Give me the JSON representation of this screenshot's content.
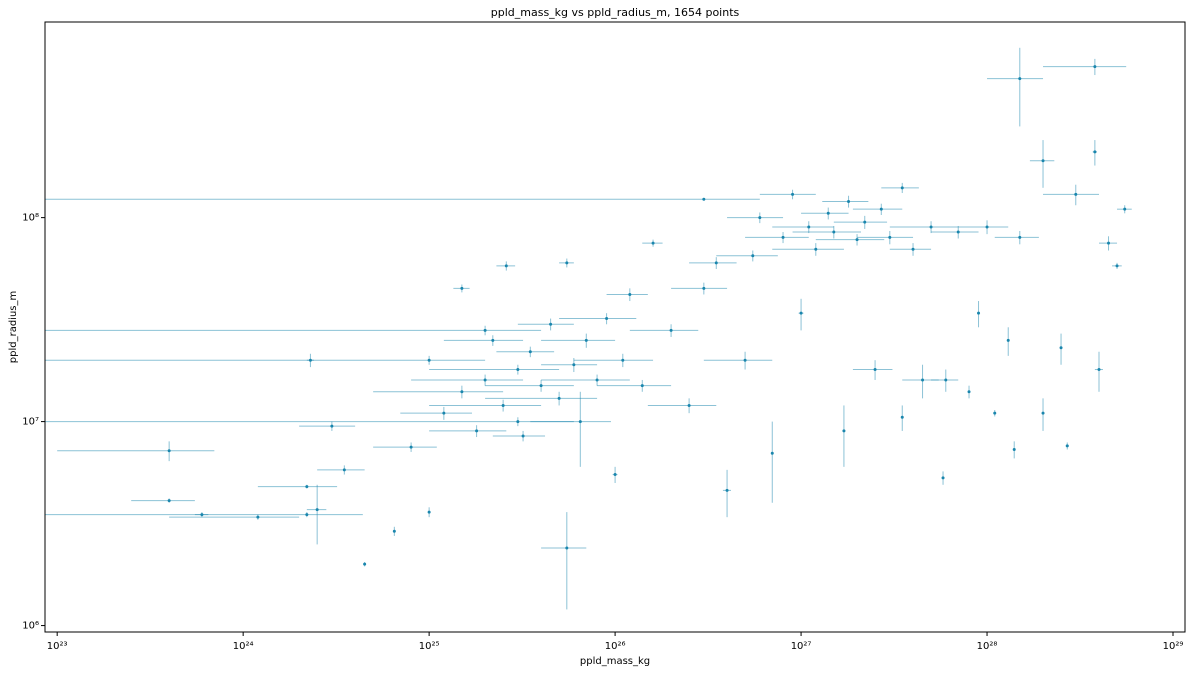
{
  "chart_data": {
    "type": "scatter",
    "title": "ppld_mass_kg vs ppld_radius_m, 1654 points",
    "xlabel": "ppld_mass_kg",
    "ylabel": "ppld_radius_m",
    "xscale": "log",
    "yscale": "log",
    "color": "#1a86ad",
    "xlim": [
      8.6e+22,
      1.16e+29
    ],
    "ylim": [
      930000.0,
      910000000.0
    ],
    "xticks": [
      {
        "value": 1e+23,
        "label": "10²³"
      },
      {
        "value": 1e+24,
        "label": "10²⁴"
      },
      {
        "value": 1e+25,
        "label": "10²⁵"
      },
      {
        "value": 1e+26,
        "label": "10²⁶"
      },
      {
        "value": 1e+27,
        "label": "10²⁷"
      },
      {
        "value": 1e+28,
        "label": "10²⁸"
      },
      {
        "value": 1e+29,
        "label": "10²⁹"
      }
    ],
    "yticks": [
      {
        "value": 1000000.0,
        "label": "10⁶"
      },
      {
        "value": 10000000.0,
        "label": "10⁷"
      },
      {
        "value": 100000000.0,
        "label": "10⁸"
      }
    ],
    "x": [
      4e+23,
      4e+23,
      6e+23,
      1.2e+24,
      2.2e+24,
      2.3e+24,
      2.5e+24,
      3e+24,
      3.5e+24,
      4.5e+24,
      6.5e+24,
      8e+24,
      1e+25,
      1.2e+25,
      1.5e+25,
      1.5e+25,
      1.8e+25,
      2e+25,
      2.2e+25,
      2.5e+25,
      2.6e+25,
      3e+25,
      3.2e+25,
      3.5e+25,
      4e+25,
      4.5e+25,
      5e+25,
      5.5e+25,
      5.5e+25,
      6e+25,
      6.5e+25,
      7e+25,
      8e+25,
      9e+25,
      1e+26,
      1.1e+26,
      1.2e+26,
      1.4e+26,
      1.6e+26,
      2e+26,
      2.5e+26,
      3e+26,
      3.5e+26,
      4e+26,
      5e+26,
      5.5e+26,
      6e+26,
      7e+26,
      8e+26,
      9e+26,
      1e+27,
      1.1e+27,
      1.2e+27,
      1.4e+27,
      1.5e+27,
      1.7e+27,
      1.8e+27,
      2e+27,
      2.2e+27,
      2.5e+27,
      2.7e+27,
      3e+27,
      3.5e+27,
      3.5e+27,
      4e+27,
      4.5e+27,
      5e+27,
      5.8e+27,
      6e+27,
      7e+27,
      8e+27,
      9e+27,
      1e+28,
      1.1e+28,
      1.3e+28,
      1.4e+28,
      1.5e+28,
      1.5e+28,
      2e+28,
      2e+28,
      2.5e+28,
      2.7e+28,
      3e+28,
      3.8e+28,
      3.8e+28,
      4e+28,
      4.5e+28,
      5e+28,
      5.5e+28,
      3e+26,
      2e+25,
      3e+25,
      1e+25,
      2.2e+24
    ],
    "values": [
      7200000.0,
      4100000.0,
      3500000.0,
      3400000.0,
      4800000.0,
      20000000.0,
      3700000.0,
      9500000.0,
      5800000.0,
      2000000.0,
      2900000.0,
      7500000.0,
      3600000.0,
      11000000.0,
      45000000.0,
      14000000.0,
      9000000.0,
      16000000.0,
      25000000.0,
      12000000.0,
      58000000.0,
      18000000.0,
      8500000.0,
      22000000.0,
      15000000.0,
      30000000.0,
      13000000.0,
      2400000.0,
      60000000.0,
      19000000.0,
      10000000.0,
      25000000.0,
      16000000.0,
      32000000.0,
      5500000.0,
      20000000.0,
      42000000.0,
      15000000.0,
      75000000.0,
      28000000.0,
      12000000.0,
      45000000.0,
      60000000.0,
      4600000.0,
      20000000.0,
      65000000.0,
      100000000.0,
      7000000.0,
      80000000.0,
      130000000.0,
      34000000.0,
      90000000.0,
      70000000.0,
      105000000.0,
      85000000.0,
      9000000.0,
      120000000.0,
      78000000.0,
      95000000.0,
      18000000.0,
      110000000.0,
      80000000.0,
      10500000.0,
      140000000.0,
      70000000.0,
      16000000.0,
      90000000.0,
      5300000.0,
      16000000.0,
      85000000.0,
      14000000.0,
      34000000.0,
      90000000.0,
      11000000.0,
      25000000.0,
      7300000.0,
      480000000.0,
      80000000.0,
      11000000.0,
      190000000.0,
      23000000.0,
      7600000.0,
      130000000.0,
      550000000.0,
      210000000.0,
      18000000.0,
      75000000.0,
      58000000.0,
      110000000.0,
      123000000.0,
      28000000.0,
      10000000.0,
      20000000.0,
      3500000.0
    ],
    "xerr": [
      3e+23,
      1.5e+23,
      5e+22,
      8e+23,
      1e+24,
      1e+23,
      3e+23,
      1e+24,
      1e+24,
      2e+22,
      1e+23,
      3e+24,
      1e+23,
      5e+24,
      1.5e+24,
      1e+25,
      8e+24,
      1.2e+25,
      1e+25,
      1.5e+25,
      3e+24,
      2e+25,
      1e+25,
      1.2e+25,
      2e+25,
      1.5e+25,
      3e+25,
      1.5e+25,
      5e+24,
      2e+25,
      3e+25,
      3e+25,
      4e+25,
      4e+25,
      3e+24,
      5e+25,
      3e+25,
      6e+25,
      2e+25,
      8e+25,
      1e+26,
      1e+26,
      1e+26,
      2e+25,
      2e+26,
      2e+26,
      2e+26,
      1e+25,
      3e+26,
      3e+26,
      3e+25,
      4e+26,
      5e+26,
      4e+26,
      6e+26,
      3e+25,
      5e+26,
      8e+26,
      7e+26,
      6e+26,
      8e+26,
      1e+27,
      5e+25,
      8e+26,
      1e+27,
      1e+27,
      2e+27,
      1e+26,
      1e+27,
      2e+27,
      1e+26,
      1e+26,
      3e+27,
      1e+26,
      1e+26,
      1e+26,
      5e+27,
      4e+27,
      1e+26,
      3e+27,
      1e+26,
      5e+26,
      1e+28,
      1.8e+28,
      1e+27,
      2e+27,
      5e+27,
      3e+27,
      5e+27,
      3e+26,
      2e+25,
      3e+25,
      1e+25,
      2.2e+24
    ],
    "yerr": [
      800000.0,
      100000.0,
      100000.0,
      100000.0,
      100000.0,
      1500000.0,
      1200000.0,
      500000.0,
      300000.0,
      50000.0,
      150000.0,
      400000.0,
      200000.0,
      800000.0,
      2000000.0,
      1000000.0,
      600000.0,
      1000000.0,
      1500000.0,
      800000.0,
      3000000.0,
      1000000.0,
      500000.0,
      1300000.0,
      1000000.0,
      2000000.0,
      1000000.0,
      1200000.0,
      3000000.0,
      1500000.0,
      4000000.0,
      2000000.0,
      1000000.0,
      2000000.0,
      500000.0,
      1500000.0,
      3000000.0,
      1000000.0,
      3000000.0,
      2000000.0,
      1000000.0,
      3000000.0,
      4000000.0,
      1200000.0,
      2000000.0,
      4000000.0,
      6000000.0,
      3000000.0,
      5000000.0,
      7000000.0,
      6000000.0,
      6000000.0,
      5000000.0,
      7000000.0,
      6000000.0,
      3000000.0,
      8000000.0,
      5000000.0,
      7000000.0,
      2000000.0,
      7000000.0,
      6000000.0,
      1500000.0,
      8000000.0,
      5000000.0,
      3000000.0,
      6000000.0,
      400000.0,
      2000000.0,
      6000000.0,
      1000000.0,
      5000000.0,
      7000000.0,
      400000.0,
      4000000.0,
      700000.0,
      200000000.0,
      6000000.0,
      2000000.0,
      50000000.0,
      4000000.0,
      300000.0,
      15000000.0,
      50000000.0,
      30000000.0,
      4000000.0,
      6000000.0,
      2000000.0,
      5000000.0,
      1000000.0,
      1500000.0,
      500000.0,
      1000000.0,
      100000.0
    ]
  }
}
